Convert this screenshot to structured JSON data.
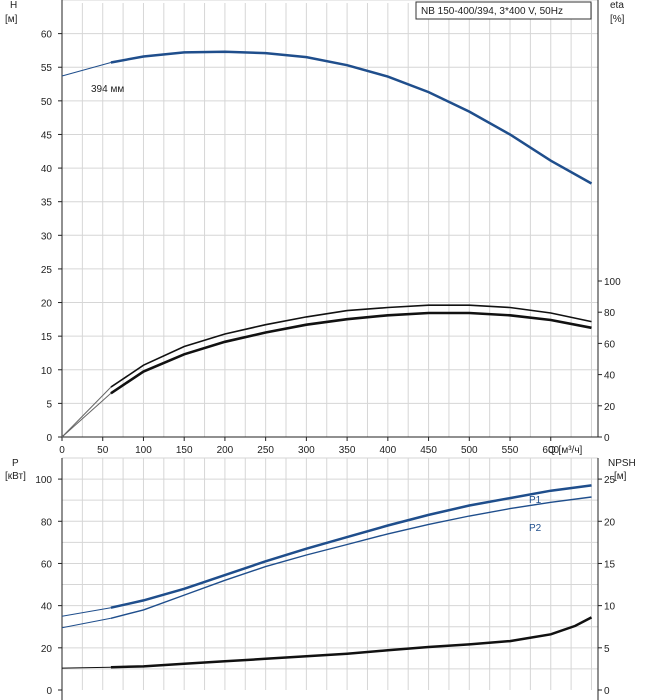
{
  "chart_data": [
    {
      "type": "line",
      "title": "NB 150-400/394, 3*400 V, 50Hz",
      "xlabel": "Q [м³/ч]",
      "ylabel": "H",
      "ylabel_unit": "[м]",
      "y2label": "eta",
      "y2label_unit": "[%]",
      "xlim": [
        0,
        658
      ],
      "ylim": [
        0,
        65
      ],
      "y2lim": [
        0,
        100
      ],
      "x_ticks": [
        0,
        50,
        100,
        150,
        200,
        250,
        300,
        350,
        400,
        450,
        500,
        550,
        600
      ],
      "x_tick_labels": [
        "0",
        "50",
        "100",
        "150",
        "200",
        "250",
        "300",
        "350",
        "400",
        "450",
        "500",
        "550",
        "600"
      ],
      "y_ticks": [
        0,
        5,
        10,
        15,
        20,
        25,
        30,
        35,
        40,
        45,
        50,
        55,
        60
      ],
      "y2_ticks": [
        0,
        20,
        40,
        60,
        80,
        100
      ],
      "grid": true,
      "series": [
        {
          "name": "394 мм",
          "axis": "left",
          "color": "#1f4e8c",
          "x": [
            0,
            60,
            100,
            150,
            200,
            250,
            300,
            350,
            400,
            450,
            500,
            550,
            600,
            650
          ],
          "y": [
            53.7,
            55.7,
            56.6,
            57.2,
            57.3,
            57.1,
            56.5,
            55.3,
            53.6,
            51.3,
            48.4,
            45.0,
            41.1,
            37.7
          ]
        },
        {
          "name": "",
          "axis": "right",
          "color": "#111111",
          "x": [
            0,
            60,
            100,
            150,
            200,
            250,
            300,
            350,
            400,
            450,
            500,
            550,
            600,
            650
          ],
          "y": [
            0,
            32,
            46,
            58,
            66,
            72,
            77,
            81,
            83,
            84.5,
            84.5,
            83,
            79.5,
            74
          ]
        },
        {
          "name": "",
          "axis": "right",
          "color": "#111111",
          "x": [
            0,
            60,
            100,
            150,
            200,
            250,
            300,
            350,
            400,
            450,
            500,
            550,
            600,
            650
          ],
          "y": [
            0,
            28,
            42,
            53,
            61,
            67,
            72,
            75.5,
            78,
            79.5,
            79.5,
            78,
            75,
            70
          ]
        }
      ],
      "curve_label": "394 мм"
    },
    {
      "type": "line",
      "ylabel": "P",
      "ylabel_unit": "[кВт]",
      "y2label": "NPSH",
      "y2label_unit": "[м]",
      "xlim": [
        0,
        658
      ],
      "ylim": [
        0,
        110
      ],
      "y2lim": [
        0,
        27.5
      ],
      "y_ticks": [
        0,
        20,
        40,
        60,
        80,
        100
      ],
      "y2_ticks": [
        0,
        5,
        10,
        15,
        20,
        25
      ],
      "grid": true,
      "series": [
        {
          "name": "P1",
          "axis": "left",
          "color": "#1f4e8c",
          "x": [
            0,
            60,
            100,
            150,
            200,
            250,
            300,
            350,
            400,
            450,
            500,
            550,
            600,
            650
          ],
          "y": [
            35,
            39,
            42.5,
            48,
            54.5,
            61,
            67,
            72.5,
            78,
            83,
            87.5,
            91,
            94.5,
            97
          ]
        },
        {
          "name": "P2",
          "axis": "left",
          "color": "#1f4e8c",
          "x": [
            0,
            60,
            100,
            150,
            200,
            250,
            300,
            350,
            400,
            450,
            500,
            550,
            600,
            650
          ],
          "y": [
            29.5,
            34,
            38,
            45,
            52,
            58.5,
            64,
            69,
            74,
            78.5,
            82.5,
            86,
            89,
            91.5
          ]
        },
        {
          "name": "",
          "axis": "right",
          "color": "#111111",
          "x": [
            0,
            60,
            100,
            150,
            200,
            250,
            300,
            350,
            400,
            450,
            500,
            550,
            600,
            630,
            650
          ],
          "y": [
            2.6,
            2.7,
            2.8,
            3.1,
            3.4,
            3.7,
            4.0,
            4.3,
            4.7,
            5.1,
            5.4,
            5.8,
            6.6,
            7.6,
            8.6
          ]
        }
      ]
    }
  ]
}
